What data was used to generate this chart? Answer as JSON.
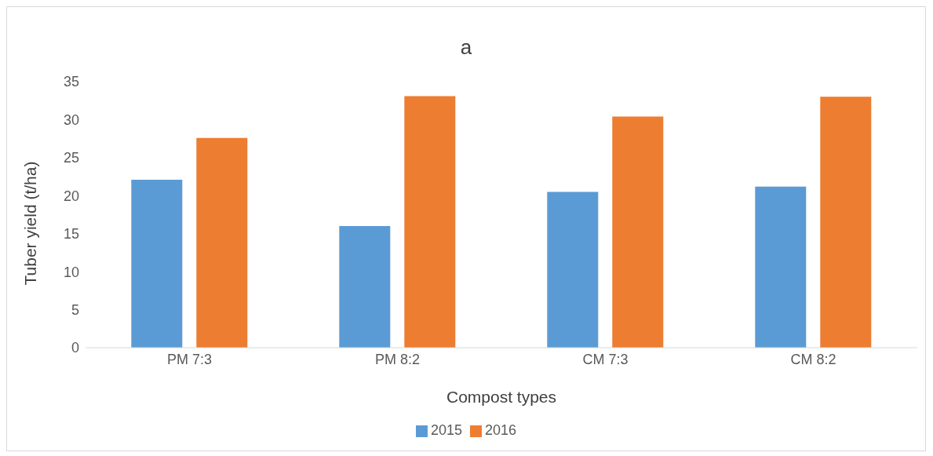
{
  "chart_data": {
    "type": "bar",
    "title": "a",
    "xlabel": "Compost types",
    "ylabel": "Tuber yield (t/ha)",
    "categories": [
      "PM 7:3",
      "PM 8:2",
      "CM 7:3",
      "CM 8:2"
    ],
    "series": [
      {
        "name": "2015",
        "color": "#5b9bd5",
        "values": [
          22.1,
          16.0,
          20.5,
          21.2
        ]
      },
      {
        "name": "2016",
        "color": "#ed7d31",
        "values": [
          27.6,
          33.1,
          30.4,
          33.0
        ]
      }
    ],
    "ylim": [
      0,
      35
    ],
    "yticks": [
      0,
      5,
      10,
      15,
      20,
      25,
      30,
      35
    ],
    "grid": false,
    "legend": "bottom"
  }
}
